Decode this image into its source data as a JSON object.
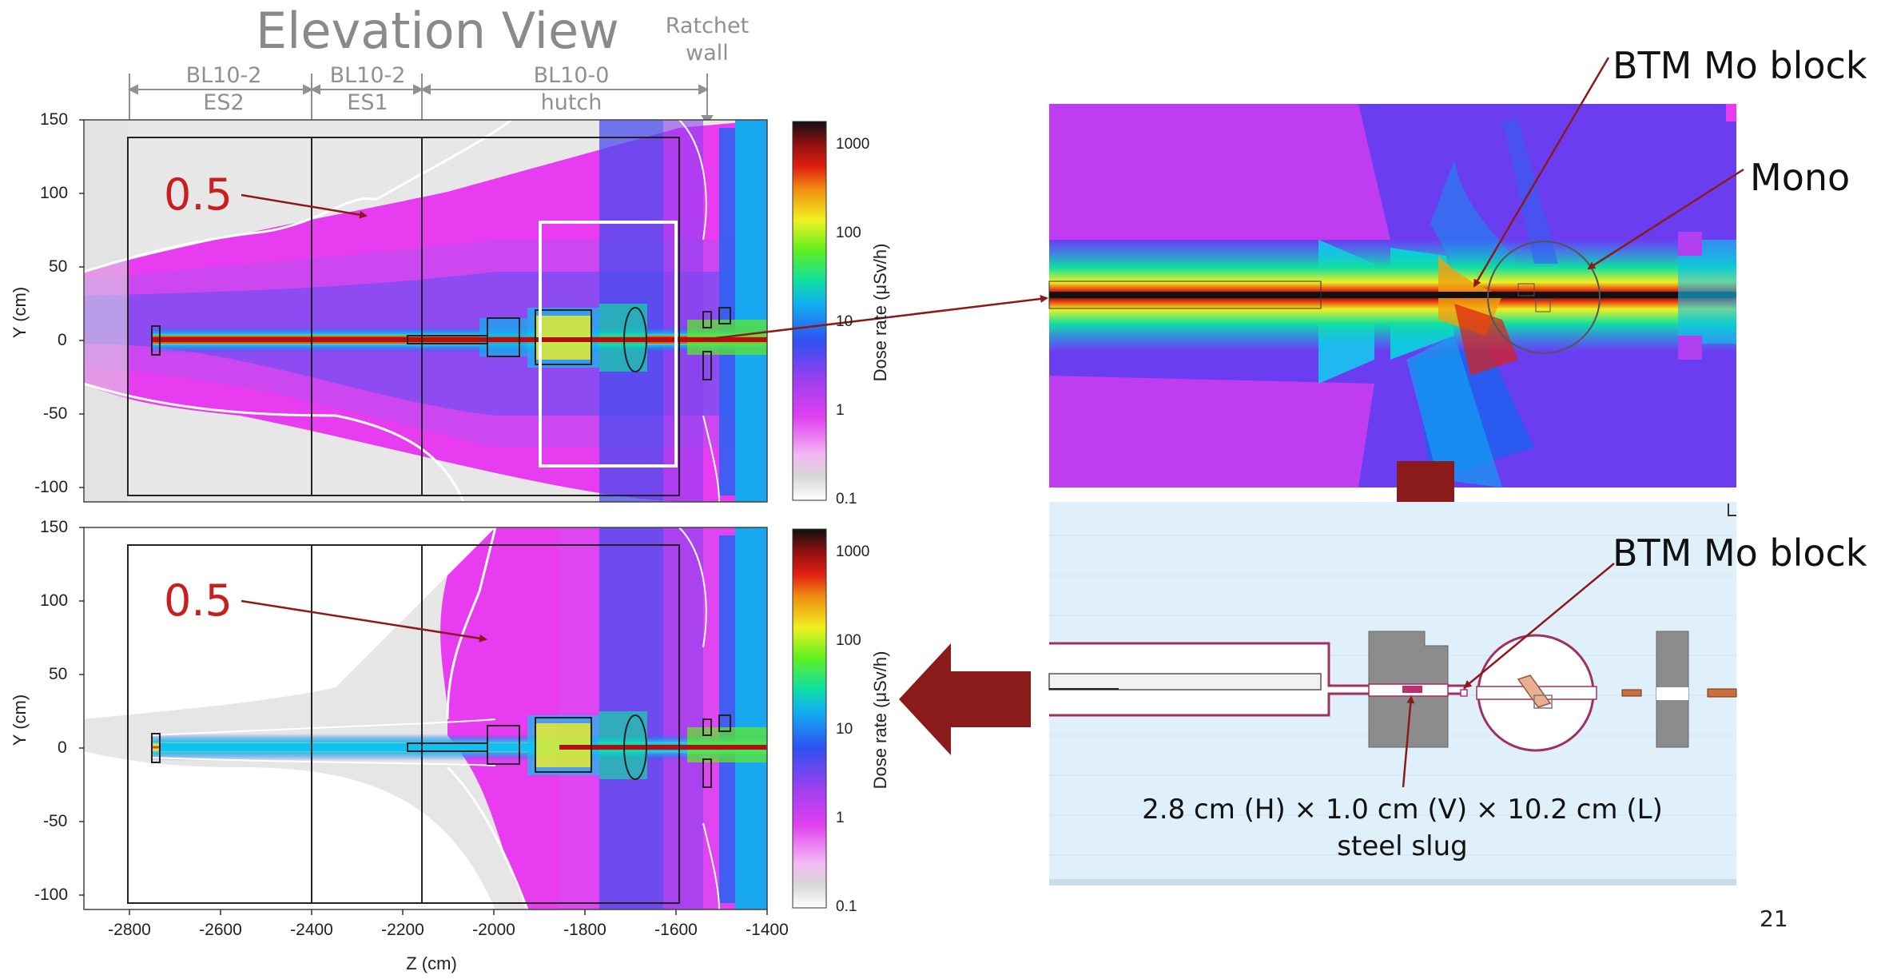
{
  "title": "Elevation View",
  "sections": [
    {
      "line1": "BL10-2",
      "line2": "ES2"
    },
    {
      "line1": "BL10-2",
      "line2": "ES1"
    },
    {
      "line1": "BL10-0",
      "line2": "hutch"
    }
  ],
  "ratchet": {
    "line1": "Ratchet",
    "line2": "wall"
  },
  "top_plot": {
    "ylabel": "Y (cm)",
    "yticks": [
      "150",
      "100",
      "50",
      "0",
      "-50",
      "-100"
    ],
    "contour_label": "0.5"
  },
  "bottom_plot": {
    "ylabel": "Y (cm)",
    "yticks": [
      "150",
      "100",
      "50",
      "0",
      "-50",
      "-100"
    ],
    "contour_label": "0.5"
  },
  "xaxis": {
    "label": "Z (cm)",
    "ticks": [
      "-2800",
      "-2600",
      "-2400",
      "-2200",
      "-2000",
      "-1800",
      "-1600",
      "-1400"
    ]
  },
  "colorbar": {
    "label": "Dose rate (μSv/h)",
    "ticks": [
      "1000",
      "100",
      "10",
      "1",
      "0.1"
    ]
  },
  "zoom": {
    "label_mo": "BTM Mo block",
    "label_mono": "Mono"
  },
  "geometry": {
    "label_mo": "BTM Mo block",
    "caption_line1": "2.8 cm (H) × 1.0 cm (V) × 10.2 cm (L)",
    "caption_line2": "steel slug"
  },
  "page_number": "21",
  "colors": {
    "arrow": "#8b1a1a",
    "annotation_red": "#c81e1e",
    "magenta": "#e040f0",
    "geometry_bg": "#dff0fb"
  }
}
